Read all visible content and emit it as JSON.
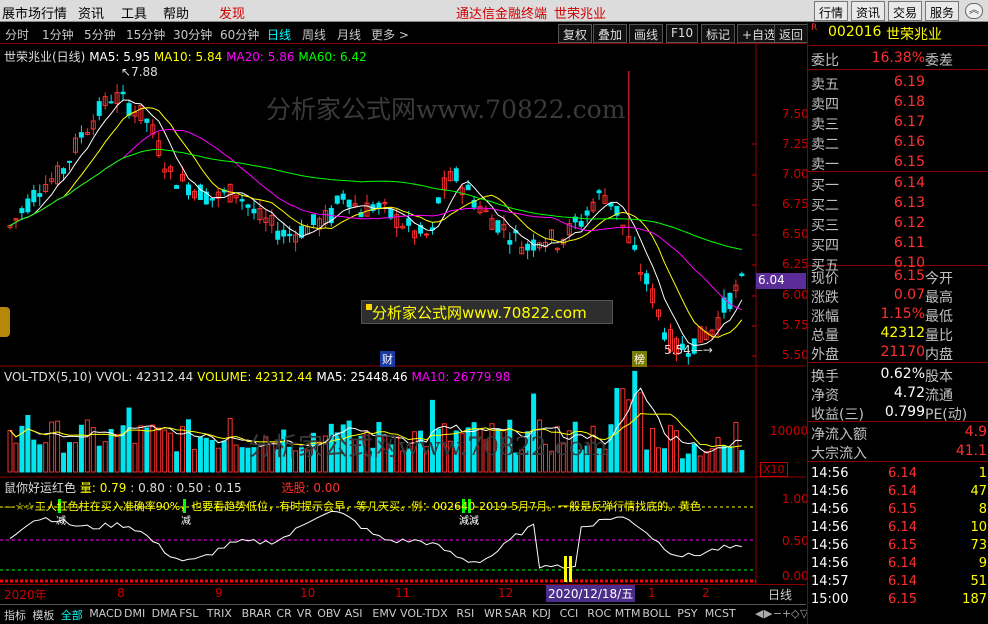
{
  "menubar": {
    "items": [
      "展市场行情",
      "资讯",
      "工具",
      "帮助"
    ],
    "discover": "发现",
    "promo": "通达信金融终端",
    "stock_title": "世荣兆业",
    "right_buttons": [
      "行情",
      "资讯",
      "交易",
      "服务"
    ]
  },
  "timeframes": {
    "items": [
      "分时",
      "1分钟",
      "5分钟",
      "15分钟",
      "30分钟",
      "60分钟",
      "日线",
      "周线",
      "月线",
      "更多 >"
    ],
    "active": "日线",
    "tools": [
      "复权",
      "叠加",
      "画线",
      "F10",
      "标记",
      "+自选",
      "返回"
    ]
  },
  "main_chart": {
    "title": "世荣兆业(日线)",
    "ma5": "MA5: 5.95",
    "ma10": "MA10: 5.84",
    "ma20": "MA20: 5.86",
    "ma60": "MA60: 6.42",
    "watermark": "分析家公式网www.70822.com",
    "banner": "分析家公式网www.70822.com",
    "high_label": "7.88",
    "low_label": "5.54",
    "current_price_tag": "6.04",
    "event_cai": "财",
    "event_bang": "榜",
    "y_ticks": [
      "7.50",
      "7.25",
      "7.00",
      "6.75",
      "6.50",
      "6.25",
      "6.00",
      "5.75",
      "5.50"
    ],
    "colors": {
      "up": "#ff3030",
      "down": "#00e5ee",
      "ma5": "#ffffff",
      "ma10": "#ffff00",
      "ma20": "#ff00ff",
      "ma60": "#00ff00"
    }
  },
  "vol_chart": {
    "title": "VOL-TDX(5,10)",
    "vvol": "VVOL: 42312.44",
    "volume": "VOLUME: 42312.44",
    "ma5": "MA5: 25448.46",
    "ma10": "MA10: 26779.98",
    "y_tick": "10000",
    "unit": "X10",
    "watermark": "分析家公式网www.70822.com"
  },
  "indicator": {
    "title": "鼠你好运红色",
    "liang": "量: 0.79",
    "v1": ": 0.80",
    "v2": ": 0.50",
    "v3": ": 0.15",
    "xuangu": "选股: 0.00",
    "note": "—☆☆工人红色柱在买入准确率90%，也要看趋势低位，有时提示会早，等几天买。例：002640-2019-5月7月。一般是反弹行情找底的。黄色",
    "y_ticks": [
      "1.00",
      "0.50",
      "0.00"
    ],
    "markers": [
      "减",
      "减",
      "減減"
    ]
  },
  "xaxis": {
    "labels": [
      "2020年",
      "8",
      "9",
      "10",
      "11",
      "12",
      "2020/12/18/五",
      "1",
      "2"
    ],
    "right_label": "日线"
  },
  "quote": {
    "code": "002016",
    "name": "世荣兆业",
    "weibi_label": "委比",
    "weibi": "16.38%",
    "weicha_label": "委差",
    "sells": [
      {
        "label": "卖五",
        "price": "6.19"
      },
      {
        "label": "卖四",
        "price": "6.18"
      },
      {
        "label": "卖三",
        "price": "6.17"
      },
      {
        "label": "卖二",
        "price": "6.16"
      },
      {
        "label": "卖一",
        "price": "6.15"
      }
    ],
    "buys": [
      {
        "label": "买一",
        "price": "6.14"
      },
      {
        "label": "买二",
        "price": "6.13"
      },
      {
        "label": "买三",
        "price": "6.12"
      },
      {
        "label": "买四",
        "price": "6.11"
      },
      {
        "label": "买五",
        "price": "6.10"
      }
    ],
    "stats": [
      {
        "l1": "现价",
        "v1": "6.15",
        "l2": "今开"
      },
      {
        "l1": "涨跌",
        "v1": "0.07",
        "l2": "最高"
      },
      {
        "l1": "涨幅",
        "v1": "1.15%",
        "l2": "最低"
      },
      {
        "l1": "总量",
        "v1": "42312",
        "l2": "量比"
      },
      {
        "l1": "外盘",
        "v1": "21170",
        "l2": "内盘"
      }
    ],
    "fin": [
      {
        "l1": "换手",
        "v1": "0.62%",
        "l2": "股本"
      },
      {
        "l1": "净资",
        "v1": "4.72",
        "l2": "流通"
      },
      {
        "l1": "收益(三)",
        "v1": "0.799",
        "l2": "PE(动)"
      }
    ],
    "flows": [
      {
        "label": "净流入额",
        "value": "4.9"
      },
      {
        "label": "大宗流入",
        "value": "41.1"
      }
    ],
    "ticks": [
      {
        "time": "14:56",
        "price": "6.14",
        "vol": "1"
      },
      {
        "time": "14:56",
        "price": "6.14",
        "vol": "47"
      },
      {
        "time": "14:56",
        "price": "6.15",
        "vol": "8"
      },
      {
        "time": "14:56",
        "price": "6.14",
        "vol": "10"
      },
      {
        "time": "14:56",
        "price": "6.15",
        "vol": "73"
      },
      {
        "time": "14:56",
        "price": "6.14",
        "vol": "9"
      },
      {
        "time": "14:57",
        "price": "6.14",
        "vol": "51"
      },
      {
        "time": "15:00",
        "price": "6.15",
        "vol": "187"
      }
    ]
  },
  "bottombar": {
    "items": [
      "指标",
      "模板",
      "全部",
      "MACD",
      "DMI",
      "DMA",
      "FSL",
      "TRIX",
      "BRAR",
      "CR",
      "VR",
      "OBV",
      "ASI",
      "EMV",
      "VOL-TDX",
      "RSI",
      "WR",
      "SAR",
      "KDJ",
      "CCI",
      "ROC",
      "MTM",
      "BOLL",
      "PSY",
      "MCST"
    ],
    "active": "全部"
  }
}
